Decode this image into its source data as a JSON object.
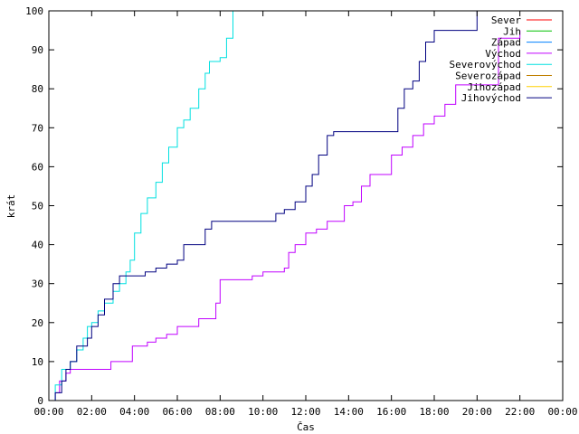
{
  "chart_data": {
    "type": "line",
    "xlabel": "Čas",
    "ylabel": "krát",
    "xlim": [
      0,
      24
    ],
    "ylim": [
      0,
      100
    ],
    "grid": false,
    "legend_position": "top-right",
    "x_ticks": [
      {
        "value": 0,
        "label": "00:00"
      },
      {
        "value": 2,
        "label": "02:00"
      },
      {
        "value": 4,
        "label": "04:00"
      },
      {
        "value": 6,
        "label": "06:00"
      },
      {
        "value": 8,
        "label": "08:00"
      },
      {
        "value": 10,
        "label": "10:00"
      },
      {
        "value": 12,
        "label": "12:00"
      },
      {
        "value": 14,
        "label": "14:00"
      },
      {
        "value": 16,
        "label": "16:00"
      },
      {
        "value": 18,
        "label": "18:00"
      },
      {
        "value": 20,
        "label": "20:00"
      },
      {
        "value": 22,
        "label": "22:00"
      },
      {
        "value": 24,
        "label": "00:00"
      }
    ],
    "y_ticks": [
      0,
      10,
      20,
      30,
      40,
      50,
      60,
      70,
      80,
      90,
      100
    ],
    "series": [
      {
        "name": "Sever",
        "color": "#ff0000",
        "x": [],
        "y": []
      },
      {
        "name": "Jih",
        "color": "#00c000",
        "x": [],
        "y": []
      },
      {
        "name": "Západ",
        "color": "#0080ff",
        "x": [],
        "y": []
      },
      {
        "name": "Východ",
        "color": "#c000ff",
        "x": [
          0,
          0.3,
          0.5,
          0.8,
          1.0,
          1.5,
          2.5,
          2.9,
          3.5,
          3.9,
          4.3,
          4.6,
          5.0,
          5.5,
          6.0,
          6.5,
          7.0,
          7.5,
          7.8,
          8.0,
          9.0,
          9.5,
          10.0,
          10.5,
          11.0,
          11.2,
          11.5,
          12.0,
          12.5,
          13.0,
          13.3,
          13.8,
          14.2,
          14.6,
          15.0,
          15.5,
          16.0,
          16.5,
          17.0,
          17.5,
          18.0,
          18.5,
          19.0,
          20.0,
          21.0,
          22.0
        ],
        "y": [
          0,
          2,
          5,
          7,
          8,
          8,
          8,
          10,
          10,
          14,
          14,
          15,
          16,
          17,
          19,
          19,
          21,
          21,
          25,
          31,
          31,
          32,
          33,
          33,
          34,
          38,
          40,
          43,
          44,
          46,
          46,
          50,
          51,
          55,
          58,
          58,
          63,
          65,
          68,
          71,
          73,
          76,
          81,
          81,
          93,
          95
        ]
      },
      {
        "name": "Severovýchod",
        "color": "#00e0e0",
        "x": [
          0,
          0.3,
          0.6,
          1.0,
          1.3,
          1.6,
          1.8,
          2.0,
          2.3,
          2.6,
          3.0,
          3.3,
          3.6,
          3.8,
          4.0,
          4.3,
          4.6,
          5.0,
          5.3,
          5.6,
          6.0,
          6.3,
          6.6,
          7.0,
          7.3,
          7.5,
          8.0,
          8.3,
          8.6
        ],
        "y": [
          0,
          4,
          8,
          10,
          13,
          16,
          19,
          20,
          23,
          25,
          28,
          30,
          33,
          36,
          43,
          48,
          52,
          56,
          61,
          65,
          70,
          72,
          75,
          80,
          84,
          87,
          88,
          93,
          100
        ]
      },
      {
        "name": "Severozápad",
        "color": "#c08000",
        "x": [],
        "y": []
      },
      {
        "name": "Jihozápad",
        "color": "#ffd000",
        "x": [],
        "y": []
      },
      {
        "name": "Jihovýchod",
        "color": "#000080",
        "x": [
          0,
          0.3,
          0.6,
          0.8,
          1.0,
          1.3,
          1.5,
          1.8,
          2.0,
          2.3,
          2.6,
          3.0,
          3.3,
          4.0,
          4.5,
          5.0,
          5.5,
          6.0,
          6.3,
          7.0,
          7.3,
          7.6,
          8.0,
          9.0,
          10.0,
          10.6,
          11.0,
          11.5,
          12.0,
          12.3,
          12.6,
          13.0,
          13.3,
          14.0,
          15.0,
          16.0,
          16.3,
          16.6,
          17.0,
          17.3,
          17.6,
          18.0,
          19.0,
          19.8,
          20.0
        ],
        "y": [
          0,
          2,
          5,
          8,
          10,
          14,
          14,
          16,
          19,
          22,
          26,
          30,
          32,
          32,
          33,
          34,
          35,
          36,
          40,
          40,
          44,
          46,
          46,
          46,
          46,
          48,
          49,
          51,
          55,
          58,
          63,
          68,
          69,
          69,
          69,
          69,
          75,
          80,
          82,
          87,
          92,
          95,
          95,
          95,
          100
        ]
      }
    ]
  }
}
